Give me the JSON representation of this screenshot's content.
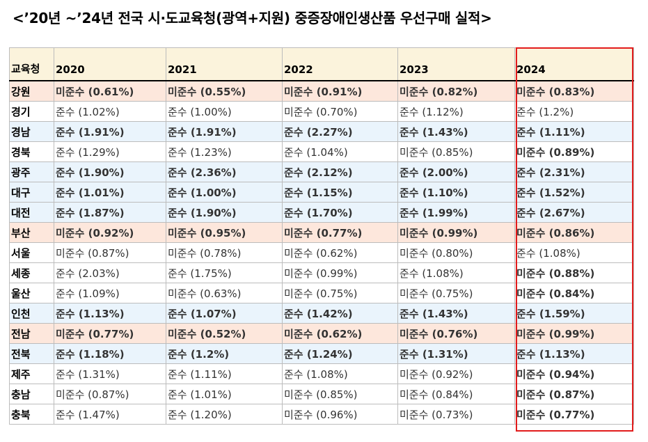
{
  "title": "<’20년 ~’24년 전국 시·도교육청(광역+지원) 중증장애인생산품 우선구매 실적>",
  "header": {
    "region_label": "교육청",
    "years": [
      "2020",
      "2021",
      "2022",
      "2023",
      "2024"
    ]
  },
  "colors": {
    "noncompliant_red": "#e0101c",
    "compliant_blue": "#1717c8",
    "red_row_bg": "#fde7dc",
    "blue_row_bg": "#eaf4fc",
    "header_bg": "#fbf3dc",
    "highlight_border": "#e21b1b"
  },
  "rows": [
    {
      "region": "강원",
      "style": "red",
      "cells": [
        {
          "text": "미준수 (0.61%)",
          "tone": "red"
        },
        {
          "text": "미준수 (0.55%)",
          "tone": "red"
        },
        {
          "text": "미준수 (0.91%)",
          "tone": "red"
        },
        {
          "text": "미준수 (0.82%)",
          "tone": "red"
        },
        {
          "text": "미준수 (0.83%)",
          "tone": "red"
        }
      ]
    },
    {
      "region": "경기",
      "style": "plain",
      "cells": [
        {
          "text": "준수 (1.02%)",
          "tone": "plain"
        },
        {
          "text": "준수 (1.00%)",
          "tone": "plain"
        },
        {
          "text": "미준수 (0.70%)",
          "tone": "plain"
        },
        {
          "text": "준수 (1.12%)",
          "tone": "plain"
        },
        {
          "text": "준수 (1.2%)",
          "tone": "plain"
        }
      ]
    },
    {
      "region": "경남",
      "style": "blue",
      "cells": [
        {
          "text": "준수 (1.91%)",
          "tone": "blue"
        },
        {
          "text": "준수 (1.91%)",
          "tone": "blue"
        },
        {
          "text": "준수 (2.27%)",
          "tone": "blue"
        },
        {
          "text": "준수 (1.43%)",
          "tone": "blue"
        },
        {
          "text": "준수 (1.11%)",
          "tone": "blue"
        }
      ]
    },
    {
      "region": "경북",
      "style": "plain",
      "cells": [
        {
          "text": "준수 (1.29%)",
          "tone": "plain"
        },
        {
          "text": "준수 (1.23%)",
          "tone": "plain"
        },
        {
          "text": "준수 (1.04%)",
          "tone": "plain"
        },
        {
          "text": "미준수 (0.85%)",
          "tone": "plain"
        },
        {
          "text": "미준수 (0.89%)",
          "tone": "red"
        }
      ]
    },
    {
      "region": "광주",
      "style": "blue",
      "cells": [
        {
          "text": "준수 (1.90%)",
          "tone": "blue"
        },
        {
          "text": "준수 (2.36%)",
          "tone": "blue"
        },
        {
          "text": "준수 (2.12%)",
          "tone": "blue"
        },
        {
          "text": "준수 (2.00%)",
          "tone": "blue"
        },
        {
          "text": "준수 (2.31%)",
          "tone": "blue"
        }
      ]
    },
    {
      "region": "대구",
      "style": "blue",
      "cells": [
        {
          "text": "준수 (1.01%)",
          "tone": "blue"
        },
        {
          "text": "준수 (1.00%)",
          "tone": "blue"
        },
        {
          "text": "준수 (1.15%)",
          "tone": "blue"
        },
        {
          "text": "준수 (1.10%)",
          "tone": "blue"
        },
        {
          "text": "준수 (1.52%)",
          "tone": "blue"
        }
      ]
    },
    {
      "region": "대전",
      "style": "blue",
      "cells": [
        {
          "text": "준수 (1.87%)",
          "tone": "blue"
        },
        {
          "text": "준수 (1.90%)",
          "tone": "blue"
        },
        {
          "text": "준수 (1.70%)",
          "tone": "blue"
        },
        {
          "text": "준수 (1.99%)",
          "tone": "blue"
        },
        {
          "text": "준수 (2.67%)",
          "tone": "blue"
        }
      ]
    },
    {
      "region": "부산",
      "style": "red",
      "cells": [
        {
          "text": "미준수 (0.92%)",
          "tone": "red"
        },
        {
          "text": "미준수 (0.95%)",
          "tone": "red"
        },
        {
          "text": "미준수 (0.77%)",
          "tone": "red"
        },
        {
          "text": "미준수 (0.99%)",
          "tone": "red"
        },
        {
          "text": "미준수 (0.86%)",
          "tone": "red"
        }
      ]
    },
    {
      "region": "서울",
      "style": "plain",
      "cells": [
        {
          "text": "미준수 (0.87%)",
          "tone": "plain"
        },
        {
          "text": "미준수 (0.78%)",
          "tone": "plain"
        },
        {
          "text": "미준수 (0.62%)",
          "tone": "plain"
        },
        {
          "text": "미준수 (0.80%)",
          "tone": "plain"
        },
        {
          "text": "준수 (1.08%)",
          "tone": "plain"
        }
      ]
    },
    {
      "region": "세종",
      "style": "plain",
      "cells": [
        {
          "text": "준수 (2.03%)",
          "tone": "plain"
        },
        {
          "text": "준수 (1.75%)",
          "tone": "plain"
        },
        {
          "text": "미준수 (0.99%)",
          "tone": "plain"
        },
        {
          "text": "준수 (1.08%)",
          "tone": "plain"
        },
        {
          "text": "미준수 (0.88%)",
          "tone": "red"
        }
      ]
    },
    {
      "region": "울산",
      "style": "plain",
      "cells": [
        {
          "text": "준수 (1.09%)",
          "tone": "plain"
        },
        {
          "text": "미준수 (0.63%)",
          "tone": "plain"
        },
        {
          "text": "미준수 (0.75%)",
          "tone": "plain"
        },
        {
          "text": "미준수 (0.75%)",
          "tone": "plain"
        },
        {
          "text": "미준수 (0.84%)",
          "tone": "red"
        }
      ]
    },
    {
      "region": "인천",
      "style": "blue",
      "cells": [
        {
          "text": "준수 (1.13%)",
          "tone": "blue"
        },
        {
          "text": "준수 (1.07%)",
          "tone": "blue"
        },
        {
          "text": "준수 (1.42%)",
          "tone": "blue"
        },
        {
          "text": "준수 (1.43%)",
          "tone": "blue"
        },
        {
          "text": "준수 (1.59%)",
          "tone": "blue"
        }
      ]
    },
    {
      "region": "전남",
      "style": "red",
      "cells": [
        {
          "text": "미준수 (0.77%)",
          "tone": "red"
        },
        {
          "text": "미준수 (0.52%)",
          "tone": "red"
        },
        {
          "text": "미준수 (0.62%)",
          "tone": "red"
        },
        {
          "text": "미준수 (0.76%)",
          "tone": "red"
        },
        {
          "text": "미준수 (0.99%)",
          "tone": "red"
        }
      ]
    },
    {
      "region": "전북",
      "style": "blue",
      "cells": [
        {
          "text": "준수 (1.18%)",
          "tone": "blue"
        },
        {
          "text": "준수 (1.2%)",
          "tone": "blue"
        },
        {
          "text": "준수 (1.24%)",
          "tone": "blue"
        },
        {
          "text": "준수 (1.31%)",
          "tone": "blue"
        },
        {
          "text": "준수 (1.13%)",
          "tone": "blue"
        }
      ]
    },
    {
      "region": "제주",
      "style": "plain",
      "cells": [
        {
          "text": "준수 (1.31%)",
          "tone": "plain"
        },
        {
          "text": "준수 (1.11%)",
          "tone": "plain"
        },
        {
          "text": "준수 (1.08%)",
          "tone": "plain"
        },
        {
          "text": "미준수 (0.92%)",
          "tone": "plain"
        },
        {
          "text": "미준수 (0.94%)",
          "tone": "red"
        }
      ]
    },
    {
      "region": "충남",
      "style": "plain",
      "cells": [
        {
          "text": "미준수 (0.87%)",
          "tone": "plain"
        },
        {
          "text": "준수 (1.01%)",
          "tone": "plain"
        },
        {
          "text": "미준수 (0.85%)",
          "tone": "plain"
        },
        {
          "text": "미준수 (0.84%)",
          "tone": "plain"
        },
        {
          "text": "미준수 (0.87%)",
          "tone": "red"
        }
      ]
    },
    {
      "region": "충북",
      "style": "plain",
      "cells": [
        {
          "text": "준수 (1.47%)",
          "tone": "plain"
        },
        {
          "text": "준수 (1.20%)",
          "tone": "plain"
        },
        {
          "text": "미준수 (0.96%)",
          "tone": "plain"
        },
        {
          "text": "미준수 (0.73%)",
          "tone": "plain"
        },
        {
          "text": "미준수 (0.77%)",
          "tone": "red"
        }
      ]
    }
  ]
}
